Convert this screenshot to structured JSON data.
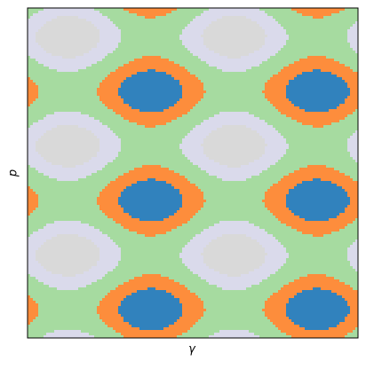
{
  "chart_data": {
    "type": "contour",
    "xlabel": "γ",
    "ylabel": "p",
    "colors": [
      "#d9d9d9",
      "#dadaeb",
      "#a6dba0",
      "#fd8d3c",
      "#3182bd"
    ]
  }
}
